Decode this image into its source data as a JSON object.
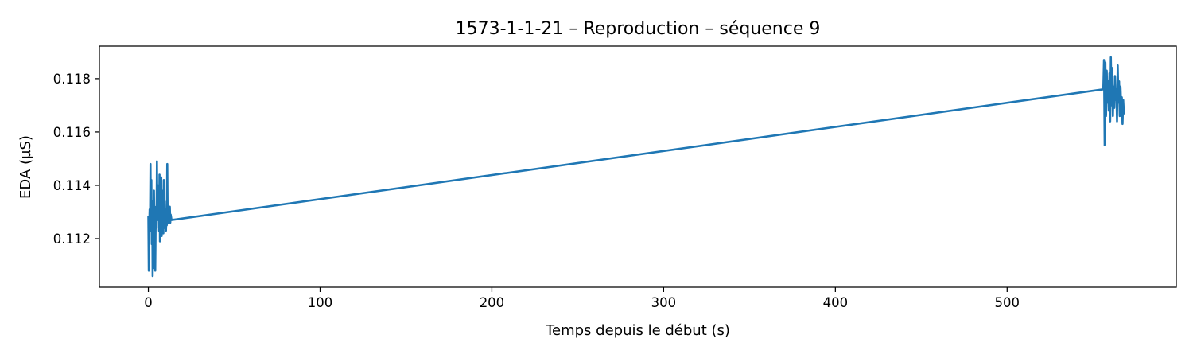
{
  "chart_data": {
    "type": "line",
    "title": "1573-1-1-21 – Reproduction – séquence 9",
    "xlabel": "Temps depuis le début (s)",
    "ylabel": "EDA (µS)",
    "xlim": [
      -28.5,
      598.5
    ],
    "ylim": [
      0.11018,
      0.11922
    ],
    "x_ticks": [
      0,
      100,
      200,
      300,
      400,
      500
    ],
    "x_tick_labels": [
      "0",
      "100",
      "200",
      "300",
      "400",
      "500"
    ],
    "y_ticks": [
      0.112,
      0.114,
      0.116,
      0.118
    ],
    "y_tick_labels": [
      "0.112",
      "0.114",
      "0.116",
      "0.118"
    ],
    "grid": false,
    "line_color": "#1f77b4",
    "series": [
      {
        "x": [
          0.0,
          0.25,
          0.5,
          0.75,
          1.0,
          1.25,
          1.5,
          1.75,
          2.0,
          2.25,
          2.5,
          2.75,
          3.0,
          3.25,
          3.5,
          3.75,
          4.0,
          4.25,
          4.5,
          4.75,
          5.0,
          5.25,
          5.5,
          5.75,
          6.0,
          6.25,
          6.5,
          6.75,
          7.0,
          7.25,
          7.5,
          7.75,
          8.0,
          8.25,
          8.5,
          8.75,
          9.0,
          9.25,
          9.5,
          9.75,
          10.0,
          10.25,
          10.5,
          10.75,
          11.0,
          11.25,
          11.5,
          11.75,
          12.0,
          12.25,
          12.5,
          12.75,
          13.0,
          13.25,
          13.5,
          556.0,
          556.4,
          556.8,
          557.2,
          557.6,
          558.0,
          558.4,
          558.8,
          559.2,
          559.6,
          560.0,
          560.4,
          560.8,
          561.2,
          561.6,
          562.0,
          562.4,
          562.8,
          563.2,
          563.6,
          564.0,
          564.4,
          564.8,
          565.2,
          565.6,
          566.0,
          566.4,
          566.8,
          567.2,
          567.6,
          568.0
        ],
        "y": [
          0.1128,
          0.1108,
          0.1125,
          0.1131,
          0.1127,
          0.1148,
          0.1123,
          0.1142,
          0.1118,
          0.1134,
          0.1106,
          0.1129,
          0.1109,
          0.1138,
          0.1125,
          0.1132,
          0.1108,
          0.1126,
          0.1131,
          0.1124,
          0.1149,
          0.1127,
          0.1136,
          0.1129,
          0.114,
          0.1123,
          0.1144,
          0.1119,
          0.1135,
          0.1127,
          0.1143,
          0.1121,
          0.1138,
          0.1126,
          0.113,
          0.1122,
          0.1142,
          0.1124,
          0.1134,
          0.1126,
          0.1131,
          0.1123,
          0.1128,
          0.1125,
          0.1148,
          0.1127,
          0.1131,
          0.1126,
          0.113,
          0.1127,
          0.1132,
          0.1126,
          0.1129,
          0.1128,
          0.1127,
          0.1176,
          0.1187,
          0.1155,
          0.1186,
          0.1166,
          0.1183,
          0.1171,
          0.1179,
          0.1168,
          0.1182,
          0.1164,
          0.1188,
          0.117,
          0.1184,
          0.1166,
          0.1177,
          0.1169,
          0.1181,
          0.1172,
          0.1176,
          0.1164,
          0.1185,
          0.1171,
          0.1179,
          0.1166,
          0.1177,
          0.117,
          0.1173,
          0.1163,
          0.1172,
          0.1167
        ]
      }
    ]
  }
}
